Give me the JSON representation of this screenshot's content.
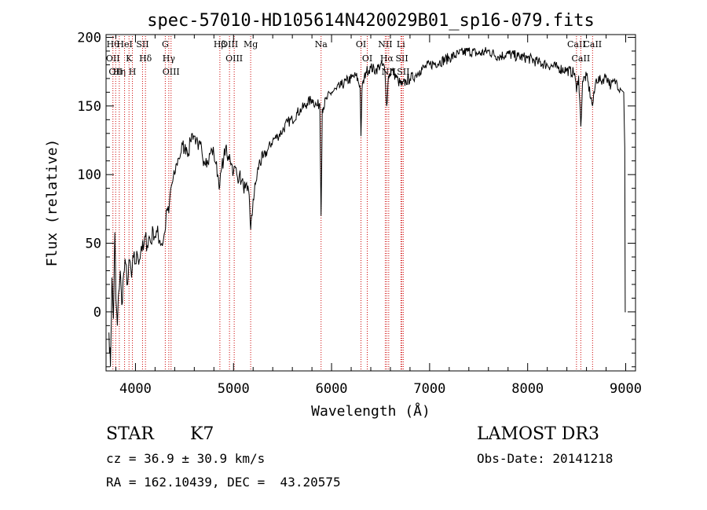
{
  "chart_data": {
    "type": "line",
    "title": "spec-57010-HD105614N420029B01_sp16-079.fits",
    "xlabel": "Wavelength (Å)",
    "ylabel": "Flux (relative)",
    "xlim": [
      3700,
      9100
    ],
    "ylim": [
      -43,
      202
    ],
    "xticks": [
      4000,
      5000,
      6000,
      7000,
      8000,
      9000
    ],
    "yticks": [
      0,
      50,
      100,
      150,
      200
    ],
    "grid": false,
    "line_color": "#000000",
    "marker_color": "#cc0000",
    "series": [
      {
        "points": [
          [
            3730,
            -15
          ],
          [
            3745,
            -40
          ],
          [
            3760,
            25
          ],
          [
            3775,
            -5
          ],
          [
            3790,
            58
          ],
          [
            3800,
            10
          ],
          [
            3815,
            -10
          ],
          [
            3830,
            15
          ],
          [
            3845,
            30
          ],
          [
            3860,
            5
          ],
          [
            3880,
            28
          ],
          [
            3900,
            35
          ],
          [
            3920,
            20
          ],
          [
            3940,
            38
          ],
          [
            3960,
            25
          ],
          [
            3980,
            40
          ],
          [
            4000,
            35
          ],
          [
            4020,
            42
          ],
          [
            4040,
            38
          ],
          [
            4060,
            48
          ],
          [
            4080,
            45
          ],
          [
            4100,
            55
          ],
          [
            4120,
            48
          ],
          [
            4140,
            55
          ],
          [
            4160,
            50
          ],
          [
            4180,
            60
          ],
          [
            4200,
            55
          ],
          [
            4220,
            58
          ],
          [
            4250,
            52
          ],
          [
            4280,
            50
          ],
          [
            4300,
            58
          ],
          [
            4320,
            75
          ],
          [
            4340,
            72
          ],
          [
            4360,
            90
          ],
          [
            4380,
            95
          ],
          [
            4400,
            100
          ],
          [
            4420,
            108
          ],
          [
            4440,
            112
          ],
          [
            4460,
            115
          ],
          [
            4480,
            122
          ],
          [
            4500,
            118
          ],
          [
            4520,
            120
          ],
          [
            4540,
            115
          ],
          [
            4560,
            125
          ],
          [
            4580,
            130
          ],
          [
            4600,
            128
          ],
          [
            4620,
            125
          ],
          [
            4640,
            118
          ],
          [
            4660,
            122
          ],
          [
            4680,
            115
          ],
          [
            4700,
            110
          ],
          [
            4720,
            112
          ],
          [
            4740,
            108
          ],
          [
            4760,
            115
          ],
          [
            4780,
            118
          ],
          [
            4800,
            115
          ],
          [
            4820,
            108
          ],
          [
            4840,
            100
          ],
          [
            4860,
            92
          ],
          [
            4880,
            105
          ],
          [
            4900,
            112
          ],
          [
            4920,
            120
          ],
          [
            4940,
            110
          ],
          [
            4960,
            115
          ],
          [
            4980,
            108
          ],
          [
            5000,
            102
          ],
          [
            5020,
            105
          ],
          [
            5040,
            98
          ],
          [
            5060,
            100
          ],
          [
            5080,
            95
          ],
          [
            5100,
            92
          ],
          [
            5120,
            90
          ],
          [
            5140,
            88
          ],
          [
            5160,
            85
          ],
          [
            5175,
            60
          ],
          [
            5190,
            70
          ],
          [
            5200,
            82
          ],
          [
            5230,
            95
          ],
          [
            5260,
            108
          ],
          [
            5300,
            112
          ],
          [
            5350,
            118
          ],
          [
            5400,
            125
          ],
          [
            5450,
            128
          ],
          [
            5500,
            132
          ],
          [
            5550,
            138
          ],
          [
            5600,
            140
          ],
          [
            5650,
            145
          ],
          [
            5700,
            148
          ],
          [
            5750,
            152
          ],
          [
            5800,
            155
          ],
          [
            5850,
            150
          ],
          [
            5880,
            152
          ],
          [
            5893,
            70
          ],
          [
            5905,
            148
          ],
          [
            5950,
            155
          ],
          [
            6000,
            160
          ],
          [
            6050,
            162
          ],
          [
            6100,
            165
          ],
          [
            6150,
            168
          ],
          [
            6200,
            170
          ],
          [
            6250,
            172
          ],
          [
            6290,
            165
          ],
          [
            6300,
            128
          ],
          [
            6310,
            162
          ],
          [
            6350,
            175
          ],
          [
            6400,
            178
          ],
          [
            6450,
            176
          ],
          [
            6500,
            180
          ],
          [
            6540,
            178
          ],
          [
            6563,
            150
          ],
          [
            6580,
            172
          ],
          [
            6620,
            176
          ],
          [
            6680,
            168
          ],
          [
            6720,
            165
          ],
          [
            6760,
            168
          ],
          [
            6800,
            170
          ],
          [
            6850,
            172
          ],
          [
            6900,
            176
          ],
          [
            6950,
            178
          ],
          [
            7000,
            180
          ],
          [
            7100,
            182
          ],
          [
            7200,
            185
          ],
          [
            7300,
            188
          ],
          [
            7400,
            190
          ],
          [
            7500,
            188
          ],
          [
            7600,
            190
          ],
          [
            7700,
            186
          ],
          [
            7800,
            188
          ],
          [
            7900,
            186
          ],
          [
            8000,
            185
          ],
          [
            8100,
            182
          ],
          [
            8200,
            180
          ],
          [
            8300,
            178
          ],
          [
            8400,
            176
          ],
          [
            8480,
            174
          ],
          [
            8498,
            160
          ],
          [
            8520,
            172
          ],
          [
            8542,
            135
          ],
          [
            8560,
            168
          ],
          [
            8600,
            172
          ],
          [
            8662,
            150
          ],
          [
            8700,
            170
          ],
          [
            8750,
            168
          ],
          [
            8800,
            172
          ],
          [
            8850,
            165
          ],
          [
            8900,
            168
          ],
          [
            8950,
            162
          ],
          [
            8980,
            160
          ],
          [
            8990,
            120
          ],
          [
            8995,
            0
          ],
          [
            9000,
            0
          ]
        ]
      }
    ],
    "lines": [
      {
        "wave": 3770,
        "labels": [
          "Hθ",
          "OII"
        ]
      },
      {
        "wave": 3798,
        "labels": [
          "OII"
        ]
      },
      {
        "wave": 3835,
        "labels": [
          "Hη"
        ]
      },
      {
        "wave": 3889,
        "labels": [
          "HeI"
        ]
      },
      {
        "wave": 3934,
        "labels": [
          "K"
        ]
      },
      {
        "wave": 3969,
        "labels": [
          "H"
        ]
      },
      {
        "wave": 4072,
        "labels": [
          "SII"
        ]
      },
      {
        "wave": 4102,
        "labels": [
          "Hδ"
        ]
      },
      {
        "wave": 4304,
        "labels": [
          "G"
        ]
      },
      {
        "wave": 4340,
        "labels": [
          "Hγ"
        ]
      },
      {
        "wave": 4363,
        "labels": [
          "OIII"
        ]
      },
      {
        "wave": 4861,
        "labels": [
          "Hβ"
        ]
      },
      {
        "wave": 4959,
        "labels": [
          "OIII"
        ]
      },
      {
        "wave": 5007,
        "labels": [
          "OIII"
        ]
      },
      {
        "wave": 5175,
        "labels": [
          "Mg"
        ]
      },
      {
        "wave": 5893,
        "labels": [
          "Na"
        ]
      },
      {
        "wave": 6300,
        "labels": [
          "OI"
        ]
      },
      {
        "wave": 6364,
        "labels": [
          "OI"
        ]
      },
      {
        "wave": 6548,
        "labels": [
          "NII"
        ]
      },
      {
        "wave": 6563,
        "labels": [
          "Hα"
        ]
      },
      {
        "wave": 6583,
        "labels": [
          "NII"
        ]
      },
      {
        "wave": 6707,
        "labels": [
          "Li"
        ]
      },
      {
        "wave": 6717,
        "labels": [
          "SII"
        ]
      },
      {
        "wave": 6731,
        "labels": [
          "SII"
        ]
      },
      {
        "wave": 8498,
        "labels": [
          "CaII"
        ]
      },
      {
        "wave": 8542,
        "labels": [
          "CaII"
        ]
      },
      {
        "wave": 8662,
        "labels": [
          "CaII"
        ]
      }
    ]
  },
  "info": {
    "object_class": "STAR",
    "subclass": "K7",
    "cz": "cz = 36.9 ± 30.9 km/s",
    "radec": "RA = 162.10439, DEC =  43.20575",
    "survey": "LAMOST DR3",
    "obs_date": "Obs-Date: 20141218"
  }
}
